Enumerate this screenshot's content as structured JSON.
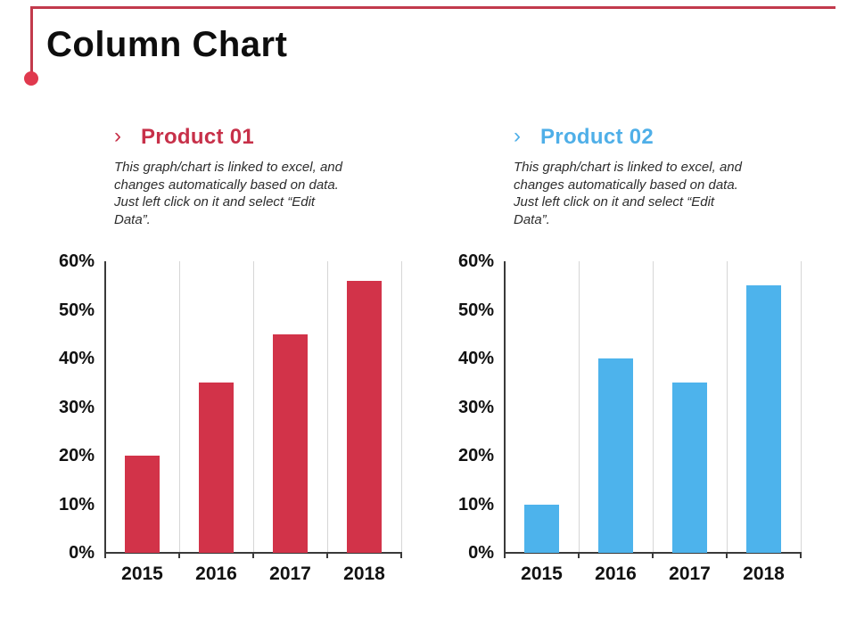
{
  "slide": {
    "title": "Column Chart"
  },
  "decoration": {
    "line_color": "#c23a4c",
    "dot_color": "#e0394e"
  },
  "sections": [
    {
      "bullet": "›",
      "heading": "Product 01",
      "heading_color": "#c73049",
      "description": "This graph/chart is linked to excel, and\nchanges automatically based on data.\nJust left click on it and select “Edit\nData”."
    },
    {
      "bullet": "›",
      "heading": "Product 02",
      "heading_color": "#4fafe8",
      "description": "This graph/chart is linked to excel, and\nchanges automatically based on data.\nJust left click on it and select “Edit\nData”."
    }
  ],
  "chart_data": [
    {
      "type": "bar",
      "title": "Product 01",
      "categories": [
        "2015",
        "2016",
        "2017",
        "2018"
      ],
      "values": [
        20,
        35,
        45,
        56
      ],
      "unit": "%",
      "ylim": [
        0,
        60
      ],
      "ytick_step": 10,
      "ytick_labels": [
        "0%",
        "10%",
        "20%",
        "30%",
        "40%",
        "50%",
        "60%"
      ],
      "bar_color": "#d23349",
      "grid": "vertical-category-boundaries",
      "grid_color": "#d6d6d6",
      "axis_color": "#3a3a3a",
      "legend": "none"
    },
    {
      "type": "bar",
      "title": "Product 02",
      "categories": [
        "2015",
        "2016",
        "2017",
        "2018"
      ],
      "values": [
        10,
        40,
        35,
        55
      ],
      "unit": "%",
      "ylim": [
        0,
        60
      ],
      "ytick_step": 10,
      "ytick_labels": [
        "0%",
        "10%",
        "20%",
        "30%",
        "40%",
        "50%",
        "60%"
      ],
      "bar_color": "#4db3ec",
      "grid": "vertical-category-boundaries",
      "grid_color": "#d6d6d6",
      "axis_color": "#3a3a3a",
      "legend": "none"
    }
  ]
}
